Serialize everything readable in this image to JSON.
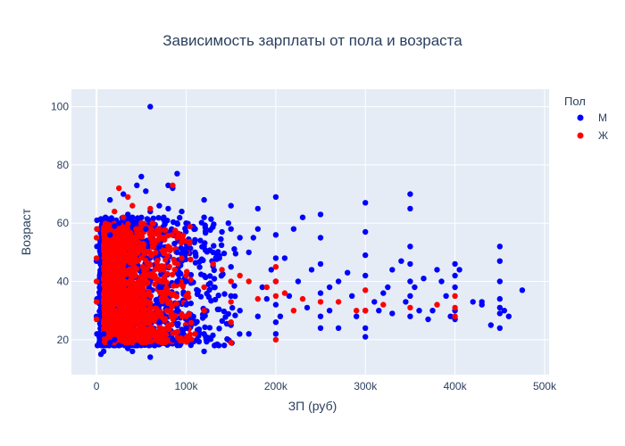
{
  "chart_data": {
    "type": "scatter",
    "title": "Зависимость зарплаты от пола и возраста",
    "xlabel": "ЗП (руб)",
    "ylabel": "Возраст",
    "xlim": [
      -28000,
      505000
    ],
    "ylim": [
      8,
      106
    ],
    "x_ticks": [
      0,
      100000,
      200000,
      300000,
      400000,
      500000
    ],
    "x_tick_labels": [
      "0",
      "100k",
      "200k",
      "300k",
      "400k",
      "500k"
    ],
    "y_ticks": [
      20,
      40,
      60,
      80,
      100
    ],
    "y_tick_labels": [
      "20",
      "40",
      "60",
      "80",
      "100"
    ],
    "grid": true,
    "legend": {
      "title": "Пол",
      "placement": "top-right"
    },
    "series": [
      {
        "name": "М",
        "color": "#0000ff",
        "points": [
          [
            60000,
            100
          ],
          [
            90000,
            77
          ],
          [
            50000,
            76
          ],
          [
            80000,
            73
          ],
          [
            85000,
            72
          ],
          [
            45000,
            73
          ],
          [
            55000,
            71
          ],
          [
            30000,
            70
          ],
          [
            15000,
            68
          ],
          [
            350000,
            70
          ],
          [
            350000,
            65
          ],
          [
            300000,
            67
          ],
          [
            200000,
            69
          ],
          [
            120000,
            68
          ],
          [
            150000,
            66
          ],
          [
            180000,
            65
          ],
          [
            250000,
            63
          ],
          [
            230000,
            62
          ],
          [
            500,
            61
          ],
          [
            500,
            58
          ],
          [
            500,
            52
          ],
          [
            0,
            47
          ],
          [
            1000,
            40
          ],
          [
            500,
            34
          ],
          [
            0,
            28
          ],
          [
            500,
            22
          ],
          [
            1000,
            18
          ],
          [
            5000,
            15
          ],
          [
            8000,
            16
          ],
          [
            60000,
            14
          ],
          [
            35000,
            17
          ],
          [
            450000,
            52
          ],
          [
            450000,
            47
          ],
          [
            450000,
            40
          ],
          [
            450000,
            34
          ],
          [
            450000,
            31
          ],
          [
            450000,
            29
          ],
          [
            450000,
            24
          ],
          [
            455000,
            30
          ],
          [
            460000,
            28
          ],
          [
            475000,
            37
          ],
          [
            430000,
            32
          ],
          [
            420000,
            33
          ],
          [
            440000,
            25
          ],
          [
            400000,
            46
          ],
          [
            400000,
            42
          ],
          [
            400000,
            38
          ],
          [
            400000,
            30
          ],
          [
            400000,
            27
          ],
          [
            405000,
            44
          ],
          [
            380000,
            44
          ],
          [
            385000,
            40
          ],
          [
            375000,
            30
          ],
          [
            370000,
            27
          ],
          [
            360000,
            30
          ],
          [
            350000,
            52
          ],
          [
            350000,
            46
          ],
          [
            350000,
            40
          ],
          [
            350000,
            35
          ],
          [
            350000,
            28
          ],
          [
            340000,
            47
          ],
          [
            330000,
            44
          ],
          [
            325000,
            38
          ],
          [
            320000,
            36
          ],
          [
            310000,
            33
          ],
          [
            300000,
            57
          ],
          [
            300000,
            49
          ],
          [
            300000,
            42
          ],
          [
            300000,
            30
          ],
          [
            300000,
            24
          ],
          [
            300000,
            21
          ],
          [
            280000,
            43
          ],
          [
            270000,
            40
          ],
          [
            260000,
            38
          ],
          [
            250000,
            55
          ],
          [
            250000,
            46
          ],
          [
            250000,
            36
          ],
          [
            250000,
            28
          ],
          [
            250000,
            24
          ],
          [
            240000,
            44
          ],
          [
            235000,
            31
          ],
          [
            220000,
            58
          ],
          [
            210000,
            48
          ],
          [
            200000,
            56
          ],
          [
            200000,
            48
          ],
          [
            200000,
            40
          ],
          [
            200000,
            32
          ],
          [
            200000,
            26
          ],
          [
            200000,
            22
          ],
          [
            195000,
            44
          ],
          [
            180000,
            58
          ],
          [
            175000,
            55
          ],
          [
            170000,
            50
          ],
          [
            160000,
            55
          ],
          [
            150000,
            58
          ],
          [
            150000,
            45
          ],
          [
            150000,
            35
          ],
          [
            150000,
            25
          ],
          [
            140000,
            57
          ],
          [
            130000,
            50
          ],
          [
            120000,
            62
          ],
          [
            120000,
            52
          ],
          [
            120000,
            42
          ],
          [
            120000,
            30
          ],
          [
            120000,
            22
          ],
          [
            120000,
            16
          ],
          [
            110000,
            58
          ],
          [
            100000,
            60
          ],
          [
            100000,
            50
          ],
          [
            100000,
            40
          ],
          [
            100000,
            32
          ],
          [
            100000,
            24
          ],
          [
            95000,
            64
          ],
          [
            90000,
            60
          ],
          [
            90000,
            50
          ],
          [
            90000,
            40
          ],
          [
            90000,
            30
          ],
          [
            85000,
            20
          ],
          [
            80000,
            65
          ],
          [
            75000,
            62
          ],
          [
            70000,
            66
          ],
          [
            70000,
            52
          ],
          [
            70000,
            38
          ],
          [
            70000,
            26
          ],
          [
            65000,
            18
          ],
          [
            60000,
            64
          ],
          [
            55000,
            58
          ],
          [
            50000,
            60
          ],
          [
            40000,
            62
          ],
          [
            35000,
            63
          ],
          [
            30000,
            61
          ],
          [
            25000,
            60
          ],
          [
            20000,
            59
          ],
          [
            15000,
            56
          ],
          [
            10000,
            62
          ],
          [
            45000,
            18
          ],
          [
            40000,
            16
          ],
          [
            25000,
            18
          ],
          [
            20000,
            20
          ],
          [
            15000,
            19
          ],
          [
            8000,
            22
          ],
          [
            430000,
            33
          ],
          [
            160000,
            30
          ],
          [
            170000,
            22
          ],
          [
            180000,
            28
          ],
          [
            190000,
            34
          ],
          [
            260000,
            30
          ],
          [
            270000,
            24
          ],
          [
            285000,
            35
          ],
          [
            290000,
            28
          ],
          [
            315000,
            30
          ],
          [
            330000,
            29
          ],
          [
            345000,
            33
          ],
          [
            355000,
            38
          ],
          [
            365000,
            41
          ],
          [
            390000,
            35
          ],
          [
            395000,
            28
          ],
          [
            225000,
            40
          ],
          [
            215000,
            35
          ],
          [
            205000,
            28
          ],
          [
            185000,
            38
          ]
        ]
      },
      {
        "name": "Ж",
        "color": "#ff0000",
        "points": [
          [
            25000,
            72
          ],
          [
            35000,
            69
          ],
          [
            85000,
            73
          ],
          [
            60000,
            65
          ],
          [
            40000,
            66
          ],
          [
            20000,
            64
          ],
          [
            30000,
            62
          ],
          [
            50000,
            60
          ],
          [
            200000,
            20
          ],
          [
            150000,
            19
          ],
          [
            110000,
            22
          ],
          [
            90000,
            55
          ],
          [
            95000,
            48
          ],
          [
            80000,
            52
          ],
          [
            75000,
            44
          ],
          [
            70000,
            58
          ],
          [
            130000,
            46
          ],
          [
            140000,
            44
          ],
          [
            160000,
            42
          ],
          [
            170000,
            40
          ],
          [
            190000,
            38
          ],
          [
            210000,
            36
          ],
          [
            230000,
            34
          ],
          [
            250000,
            33
          ],
          [
            270000,
            33
          ],
          [
            290000,
            30
          ],
          [
            300000,
            37
          ],
          [
            320000,
            32
          ],
          [
            350000,
            31
          ],
          [
            380000,
            32
          ],
          [
            400000,
            35
          ],
          [
            400000,
            31
          ],
          [
            400000,
            28
          ],
          [
            300000,
            30
          ],
          [
            220000,
            30
          ],
          [
            200000,
            45
          ],
          [
            200000,
            40
          ],
          [
            200000,
            35
          ],
          [
            180000,
            34
          ],
          [
            150000,
            40
          ],
          [
            150000,
            33
          ],
          [
            150000,
            26
          ],
          [
            120000,
            38
          ],
          [
            120000,
            30
          ],
          [
            100000,
            42
          ],
          [
            100000,
            35
          ],
          [
            100000,
            28
          ],
          [
            0,
            55
          ],
          [
            0,
            48
          ],
          [
            0,
            40
          ],
          [
            0,
            33
          ],
          [
            0,
            27
          ],
          [
            500,
            58
          ]
        ]
      }
    ],
    "dense_cluster_note": "",
    "clusters": [
      {
        "series": "М",
        "x_range": [
          3000,
          160000
        ],
        "y_range": [
          18,
          62
        ],
        "x_scale": 45000,
        "count": 1400
      },
      {
        "series": "Ж",
        "x_range": [
          8000,
          120000
        ],
        "y_range": [
          19,
          60
        ],
        "x_scale": 28000,
        "count": 1500
      }
    ]
  }
}
